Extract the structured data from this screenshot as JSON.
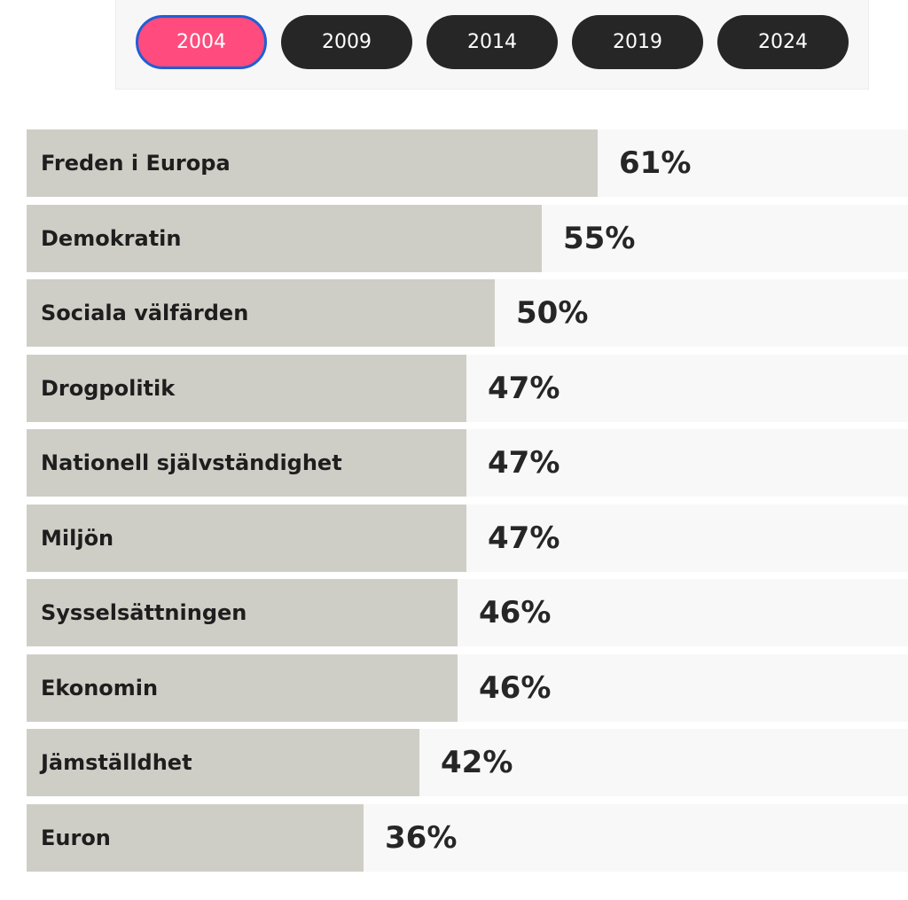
{
  "year_selector": {
    "tabs": [
      "2004",
      "2009",
      "2014",
      "2019",
      "2024"
    ],
    "active": "2004"
  },
  "colors": {
    "active_tab": "#ff4b7d",
    "active_tab_border": "#1f5fd6",
    "inactive_tab": "#262626",
    "bar": "#cfcec6",
    "track": "#f8f8f8"
  },
  "chart_data": {
    "type": "bar",
    "orientation": "horizontal",
    "title": "",
    "xlabel": "",
    "ylabel": "",
    "xlim": [
      0,
      100
    ],
    "unit": "%",
    "categories": [
      "Freden i Europa",
      "Demokratin",
      "Sociala välfärden",
      "Drogpolitik",
      "Nationell självständighet",
      "Miljön",
      "Sysselsättningen",
      "Ekonomin",
      "Jämställdhet",
      "Euron"
    ],
    "values": [
      61,
      55,
      50,
      47,
      47,
      47,
      46,
      46,
      42,
      36
    ],
    "value_labels": [
      "61%",
      "55%",
      "50%",
      "47%",
      "47%",
      "47%",
      "46%",
      "46%",
      "42%",
      "36%"
    ]
  }
}
